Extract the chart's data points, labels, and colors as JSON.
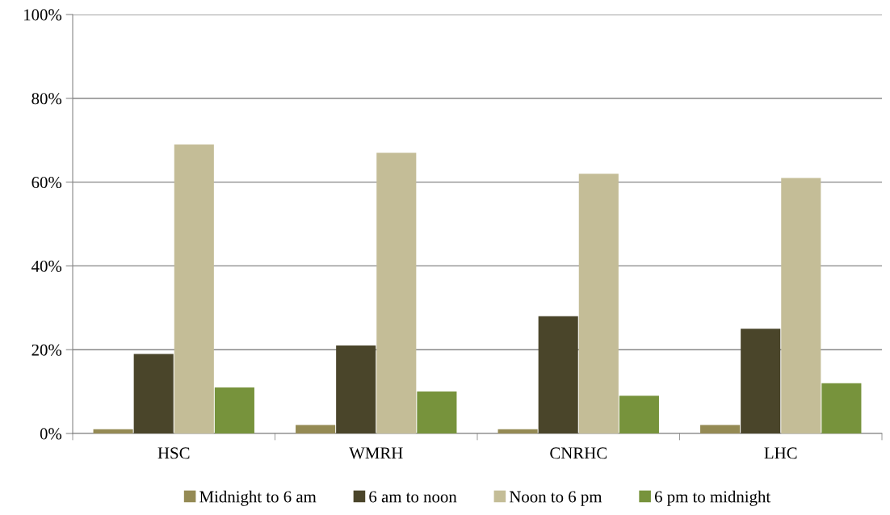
{
  "chart_data": {
    "type": "bar",
    "categories": [
      "HSC",
      "WMRH",
      "CNRHC",
      "LHC"
    ],
    "series": [
      {
        "name": "Midnight to 6 am",
        "color": "#948a54",
        "values": [
          1,
          2,
          1,
          2
        ]
      },
      {
        "name": "6 am to noon",
        "color": "#4a452a",
        "values": [
          19,
          21,
          28,
          25
        ]
      },
      {
        "name": "Noon to 6 pm",
        "color": "#c4bd97",
        "values": [
          69,
          67,
          62,
          61
        ]
      },
      {
        "name": "6 pm to midnight",
        "color": "#77933c",
        "values": [
          11,
          10,
          9,
          12
        ]
      }
    ],
    "ylim": [
      0,
      100
    ],
    "yticks": [
      {
        "value": 0,
        "label": "0%"
      },
      {
        "value": 20,
        "label": "20%"
      },
      {
        "value": 40,
        "label": "40%"
      },
      {
        "value": 60,
        "label": "60%"
      },
      {
        "value": 80,
        "label": "80%"
      },
      {
        "value": 100,
        "label": "100%"
      }
    ],
    "grid": "y",
    "legend": "bottom"
  }
}
